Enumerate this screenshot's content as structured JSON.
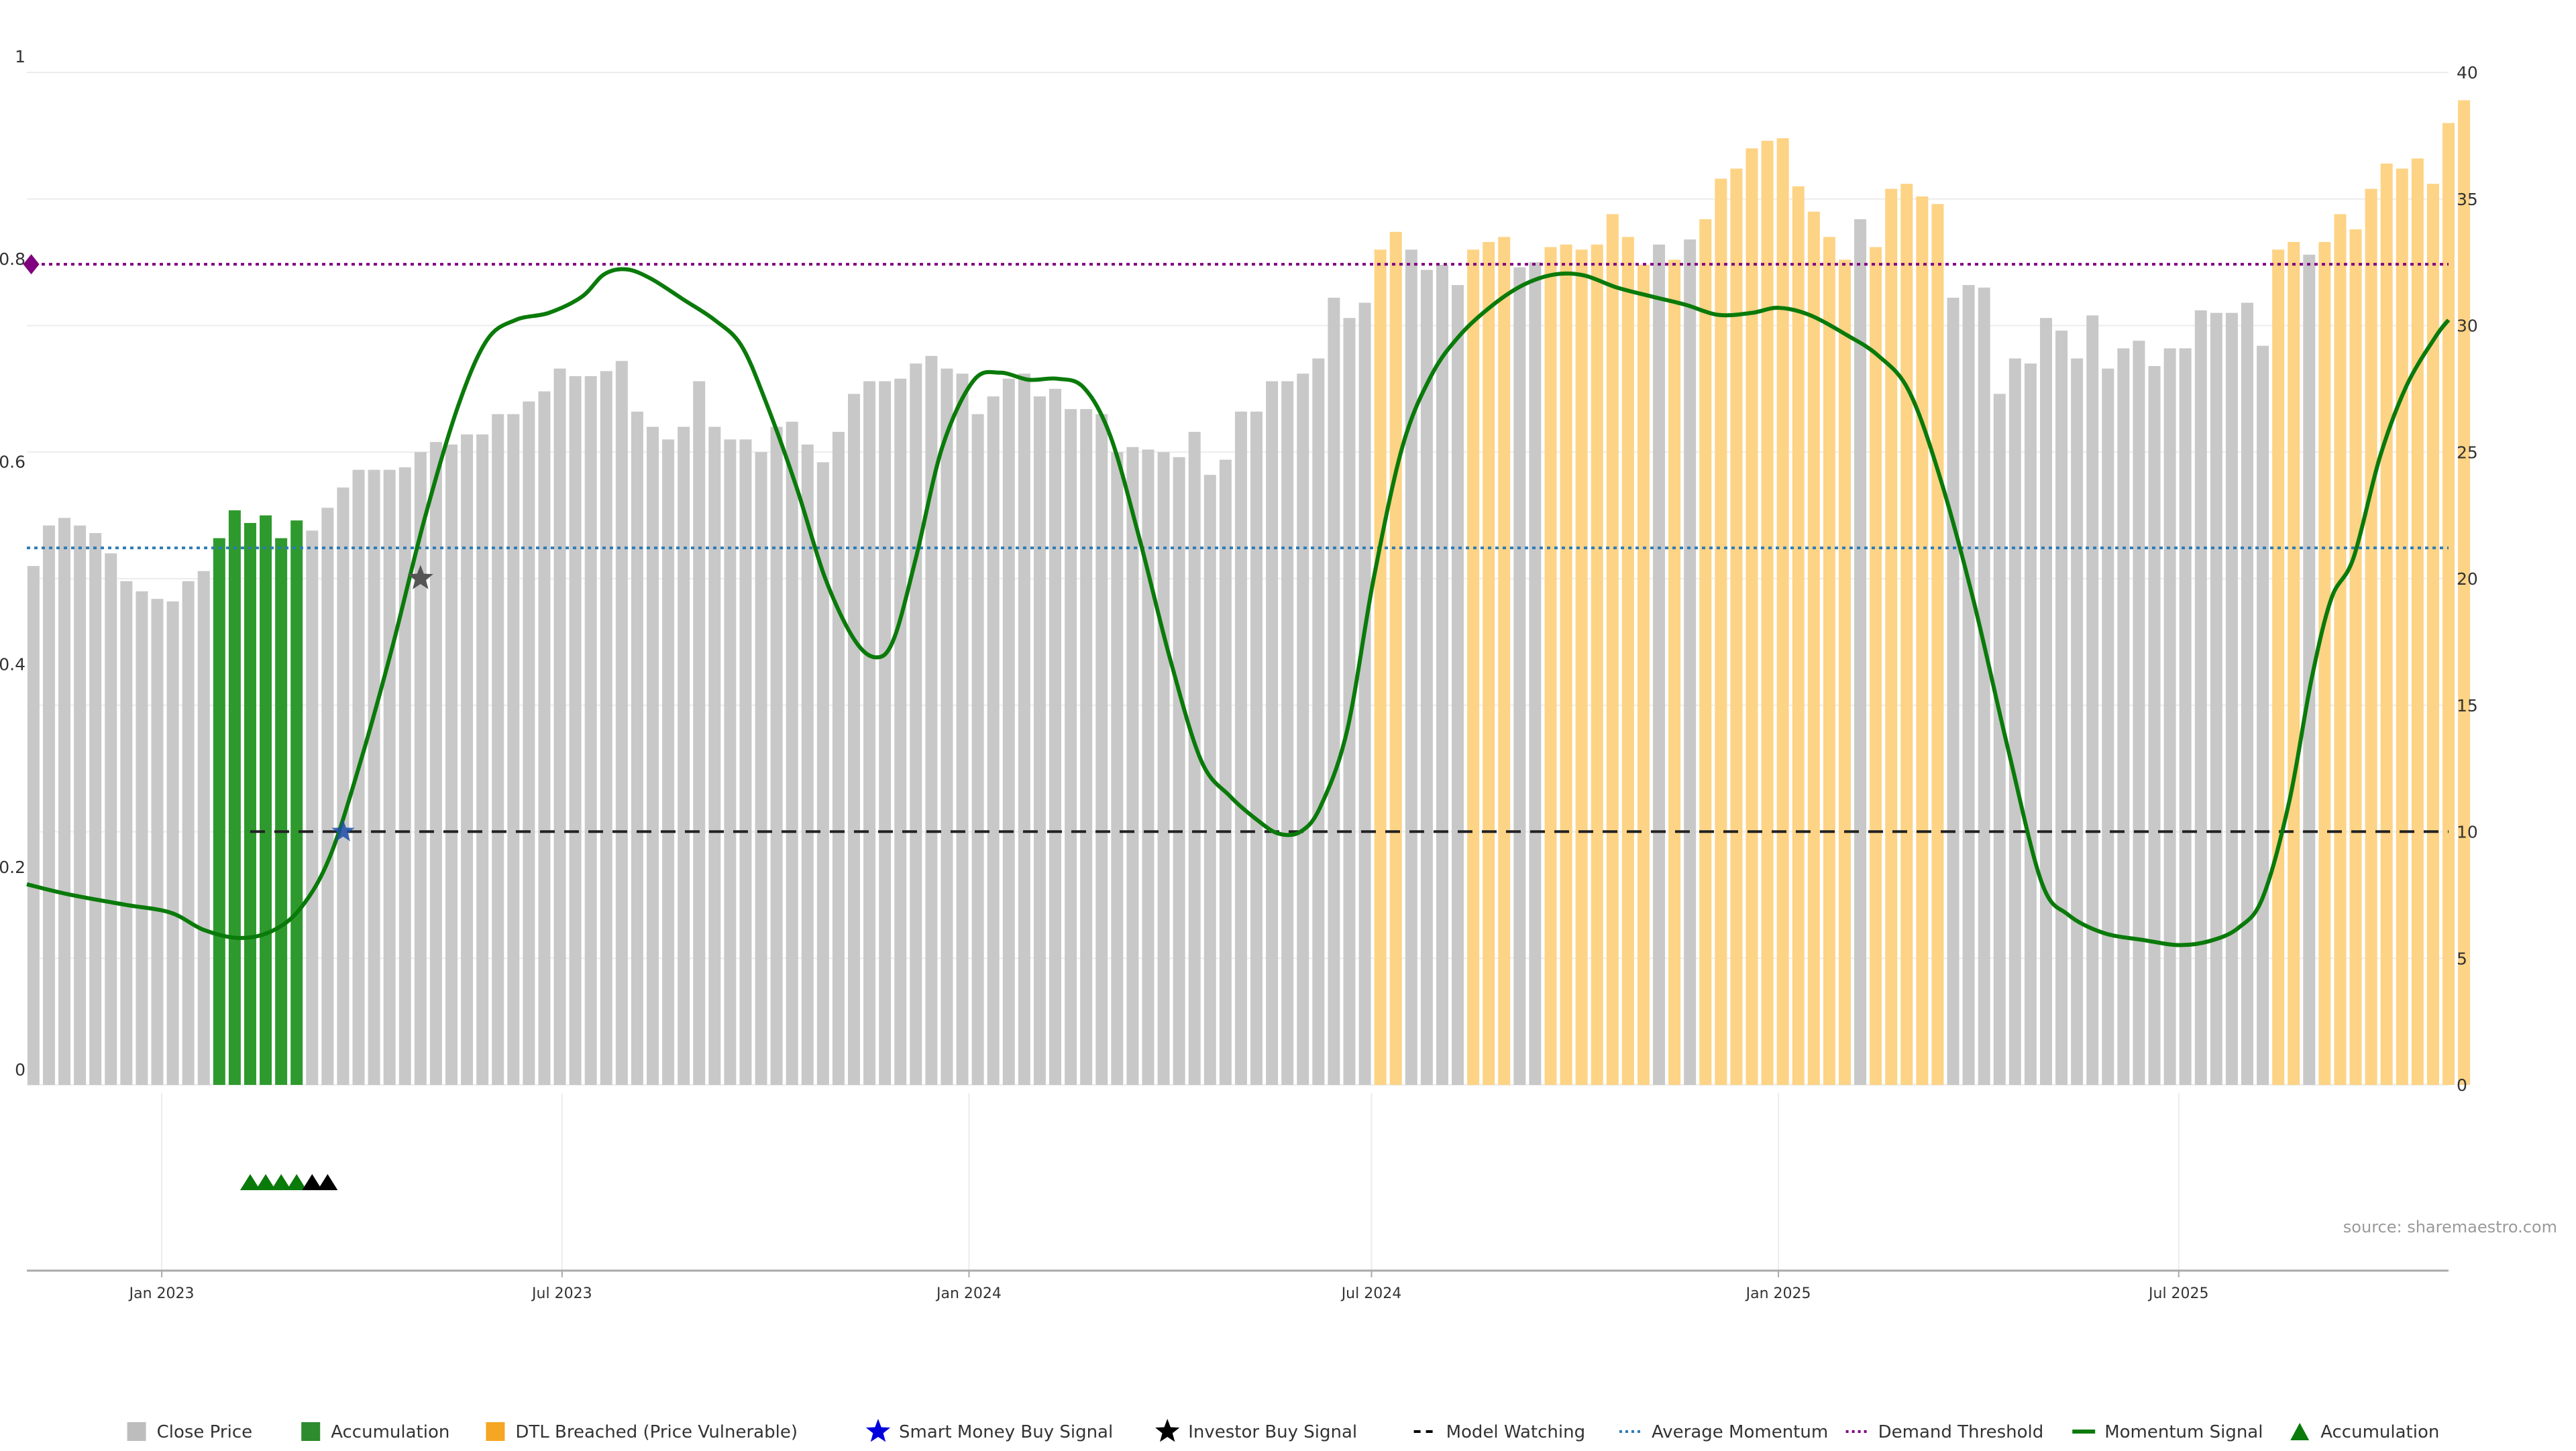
{
  "chart_data": {
    "type": "bar",
    "title": "",
    "source_label": "source: sharemaestro.com",
    "left_axis": {
      "range": [
        0,
        1
      ],
      "tick_values": [
        0,
        0.2,
        0.4,
        0.6,
        0.8,
        1
      ],
      "tick_labels": [
        "0",
        "0.2",
        "0.4",
        "0.6",
        "0.8",
        "1"
      ]
    },
    "right_axis": {
      "range": [
        0,
        40
      ],
      "tick_values": [
        0,
        5,
        10,
        15,
        20,
        25,
        30,
        35,
        40
      ],
      "tick_labels": [
        "0",
        "5",
        "10",
        "15",
        "20",
        "25",
        "30",
        "35",
        "40"
      ]
    },
    "x_axis": {
      "start": "2022-11-01",
      "end": "2025-10-31",
      "ticks": [
        {
          "date": "2023-01-01",
          "label": "Jan 2023"
        },
        {
          "date": "2023-07-01",
          "label": "Jul 2023"
        },
        {
          "date": "2024-01-01",
          "label": "Jan 2024"
        },
        {
          "date": "2024-07-01",
          "label": "Jul 2024"
        },
        {
          "date": "2025-01-01",
          "label": "Jan 2025"
        },
        {
          "date": "2025-07-01",
          "label": "Jul 2025"
        }
      ]
    },
    "bar_series": {
      "start_week": "2022-11-04",
      "interval_days": 7,
      "values": [
        20.5,
        22.1,
        22.4,
        22.1,
        21.8,
        21.0,
        19.9,
        19.5,
        19.2,
        19.1,
        19.9,
        20.3,
        21.6,
        22.7,
        22.2,
        22.5,
        21.6,
        22.3,
        21.9,
        22.8,
        23.6,
        24.3,
        24.3,
        24.3,
        24.4,
        25.0,
        25.4,
        25.3,
        25.7,
        25.7,
        26.5,
        26.5,
        27.0,
        27.4,
        28.3,
        28.0,
        28.0,
        28.2,
        28.6,
        26.6,
        26.0,
        25.5,
        26.0,
        27.8,
        26.0,
        25.5,
        25.5,
        25.0,
        26.0,
        26.2,
        25.3,
        24.6,
        25.8,
        27.3,
        27.8,
        27.8,
        27.9,
        28.5,
        28.8,
        28.3,
        28.1,
        26.5,
        27.2,
        27.9,
        28.1,
        27.2,
        27.5,
        26.7,
        26.7,
        26.5,
        25.0,
        25.2,
        25.1,
        25.0,
        24.8,
        25.8,
        24.1,
        24.7,
        26.6,
        26.6,
        27.8,
        27.8,
        28.1,
        28.7,
        31.1,
        30.3,
        30.9,
        33.0,
        33.7,
        33.0,
        32.2,
        32.4,
        31.6,
        33.0,
        33.3,
        33.5,
        32.3,
        32.5,
        33.1,
        33.2,
        33.0,
        33.2,
        34.4,
        33.5,
        32.4,
        33.2,
        32.6,
        33.4,
        34.2,
        35.8,
        36.2,
        37.0,
        37.3,
        37.4,
        35.5,
        34.5,
        33.5,
        32.6,
        34.2,
        33.1,
        35.4,
        35.6,
        35.1,
        34.8,
        31.1,
        31.6,
        31.5,
        27.3,
        28.7,
        28.5,
        30.3,
        29.8,
        28.7,
        30.4,
        28.3,
        29.1,
        29.4,
        28.4,
        29.1,
        29.1,
        30.6,
        30.5,
        30.5,
        30.9,
        29.2,
        33.0,
        33.3,
        32.8,
        33.3,
        34.4,
        33.8,
        35.4,
        36.4,
        36.2,
        36.6,
        35.6,
        38.0,
        38.9
      ],
      "colors": [
        "grey",
        "grey",
        "grey",
        "grey",
        "grey",
        "grey",
        "grey",
        "grey",
        "grey",
        "grey",
        "grey",
        "grey",
        "green",
        "green",
        "green",
        "green",
        "green",
        "green",
        "grey",
        "grey",
        "grey",
        "grey",
        "grey",
        "grey",
        "grey",
        "grey",
        "grey",
        "grey",
        "grey",
        "grey",
        "grey",
        "grey",
        "grey",
        "grey",
        "grey",
        "grey",
        "grey",
        "grey",
        "grey",
        "grey",
        "grey",
        "grey",
        "grey",
        "grey",
        "grey",
        "grey",
        "grey",
        "grey",
        "grey",
        "grey",
        "grey",
        "grey",
        "grey",
        "grey",
        "grey",
        "grey",
        "grey",
        "grey",
        "grey",
        "grey",
        "grey",
        "grey",
        "grey",
        "grey",
        "grey",
        "grey",
        "grey",
        "grey",
        "grey",
        "grey",
        "grey",
        "grey",
        "grey",
        "grey",
        "grey",
        "grey",
        "grey",
        "grey",
        "grey",
        "grey",
        "grey",
        "grey",
        "grey",
        "grey",
        "grey",
        "grey",
        "grey",
        "orange",
        "orange",
        "grey",
        "grey",
        "grey",
        "grey",
        "orange",
        "orange",
        "orange",
        "grey",
        "grey",
        "orange",
        "orange",
        "orange",
        "orange",
        "orange",
        "orange",
        "orange",
        "grey",
        "orange",
        "grey",
        "orange",
        "orange",
        "orange",
        "orange",
        "orange",
        "orange",
        "orange",
        "orange",
        "orange",
        "orange",
        "grey",
        "orange",
        "orange",
        "orange",
        "orange",
        "orange",
        "grey",
        "grey",
        "grey",
        "grey",
        "grey",
        "grey",
        "grey",
        "grey",
        "grey",
        "grey",
        "grey",
        "grey",
        "grey",
        "grey",
        "grey",
        "grey",
        "grey",
        "grey",
        "grey",
        "grey",
        "grey",
        "orange",
        "orange",
        "grey",
        "orange",
        "orange",
        "orange",
        "orange",
        "orange",
        "orange",
        "orange",
        "orange",
        "orange",
        "orange"
      ]
    },
    "momentum_series": {
      "name": "Momentum Signal",
      "axis": "left",
      "points": [
        [
          "2022-11-01",
          0.198
        ],
        [
          "2022-11-20",
          0.188
        ],
        [
          "2022-12-15",
          0.178
        ],
        [
          "2023-01-05",
          0.17
        ],
        [
          "2023-01-20",
          0.153
        ],
        [
          "2023-02-05",
          0.145
        ],
        [
          "2023-02-20",
          0.152
        ],
        [
          "2023-03-05",
          0.175
        ],
        [
          "2023-03-18",
          0.225
        ],
        [
          "2023-04-01",
          0.32
        ],
        [
          "2023-04-15",
          0.43
        ],
        [
          "2023-04-30",
          0.56
        ],
        [
          "2023-05-15",
          0.67
        ],
        [
          "2023-05-28",
          0.735
        ],
        [
          "2023-06-10",
          0.755
        ],
        [
          "2023-06-25",
          0.762
        ],
        [
          "2023-07-10",
          0.778
        ],
        [
          "2023-07-20",
          0.8
        ],
        [
          "2023-07-30",
          0.805
        ],
        [
          "2023-08-10",
          0.796
        ],
        [
          "2023-08-25",
          0.775
        ],
        [
          "2023-09-08",
          0.755
        ],
        [
          "2023-09-20",
          0.73
        ],
        [
          "2023-10-01",
          0.675
        ],
        [
          "2023-10-15",
          0.59
        ],
        [
          "2023-10-28",
          0.5
        ],
        [
          "2023-11-10",
          0.44
        ],
        [
          "2023-11-20",
          0.422
        ],
        [
          "2023-11-28",
          0.44
        ],
        [
          "2023-12-08",
          0.52
        ],
        [
          "2023-12-20",
          0.63
        ],
        [
          "2024-01-03",
          0.695
        ],
        [
          "2024-01-15",
          0.703
        ],
        [
          "2024-01-28",
          0.696
        ],
        [
          "2024-02-10",
          0.697
        ],
        [
          "2024-02-22",
          0.688
        ],
        [
          "2024-03-05",
          0.64
        ],
        [
          "2024-03-18",
          0.54
        ],
        [
          "2024-04-01",
          0.42
        ],
        [
          "2024-04-15",
          0.32
        ],
        [
          "2024-04-28",
          0.285
        ],
        [
          "2024-05-10",
          0.262
        ],
        [
          "2024-05-20",
          0.248
        ],
        [
          "2024-05-30",
          0.25
        ],
        [
          "2024-06-08",
          0.275
        ],
        [
          "2024-06-20",
          0.35
        ],
        [
          "2024-07-02",
          0.5
        ],
        [
          "2024-07-15",
          0.63
        ],
        [
          "2024-07-28",
          0.7
        ],
        [
          "2024-08-10",
          0.74
        ],
        [
          "2024-08-25",
          0.77
        ],
        [
          "2024-09-08",
          0.79
        ],
        [
          "2024-09-22",
          0.8
        ],
        [
          "2024-10-05",
          0.799
        ],
        [
          "2024-10-20",
          0.787
        ],
        [
          "2024-11-05",
          0.778
        ],
        [
          "2024-11-20",
          0.77
        ],
        [
          "2024-12-05",
          0.76
        ],
        [
          "2024-12-20",
          0.762
        ],
        [
          "2025-01-01",
          0.767
        ],
        [
          "2025-01-15",
          0.76
        ],
        [
          "2025-02-01",
          0.74
        ],
        [
          "2025-02-15",
          0.72
        ],
        [
          "2025-03-01",
          0.685
        ],
        [
          "2025-03-15",
          0.6
        ],
        [
          "2025-03-30",
          0.48
        ],
        [
          "2025-04-15",
          0.33
        ],
        [
          "2025-04-30",
          0.2
        ],
        [
          "2025-05-12",
          0.168
        ],
        [
          "2025-05-28",
          0.15
        ],
        [
          "2025-06-15",
          0.143
        ],
        [
          "2025-07-01",
          0.138
        ],
        [
          "2025-07-15",
          0.142
        ],
        [
          "2025-07-28",
          0.155
        ],
        [
          "2025-08-08",
          0.185
        ],
        [
          "2025-08-20",
          0.28
        ],
        [
          "2025-08-30",
          0.4
        ],
        [
          "2025-09-08",
          0.48
        ],
        [
          "2025-09-18",
          0.52
        ],
        [
          "2025-09-30",
          0.62
        ],
        [
          "2025-10-12",
          0.69
        ],
        [
          "2025-10-25",
          0.738
        ],
        [
          "2025-10-31",
          0.755
        ]
      ]
    },
    "reference_lines": {
      "model_watching": {
        "value": 0.25,
        "start": "2023-02-10",
        "end": "2025-10-31",
        "axis": "left"
      },
      "average_momentum": {
        "value": 0.53,
        "axis": "left"
      },
      "demand_threshold": {
        "value": 0.81,
        "axis": "left"
      }
    },
    "markers": [
      {
        "type": "smart-money-buy",
        "date": "2023-03-24",
        "value": 0.25,
        "axis": "left"
      },
      {
        "type": "investor-buy",
        "date": "2023-04-28",
        "value": 0.5,
        "axis": "left"
      },
      {
        "type": "demand-diamond",
        "date": "2022-11-03",
        "value": 0.81,
        "axis": "left"
      }
    ],
    "lower_panel_triangles": [
      {
        "date": "2023-02-10",
        "color": "green"
      },
      {
        "date": "2023-02-17",
        "color": "green"
      },
      {
        "date": "2023-02-24",
        "color": "green"
      },
      {
        "date": "2023-03-03",
        "color": "green"
      },
      {
        "date": "2023-03-10",
        "color": "black"
      },
      {
        "date": "2023-03-17",
        "color": "black"
      }
    ],
    "legend": {
      "placement": "bottom",
      "items": [
        {
          "key": "close-price",
          "label": "Close Price",
          "color": "#bdbdbd"
        },
        {
          "key": "accumulation-bar",
          "label": "Accumulation",
          "color": "#2e8b2e"
        },
        {
          "key": "dtl-breached",
          "label": "DTL Breached (Price Vulnerable)",
          "color": "#f5a623"
        },
        {
          "key": "smart-money-buy",
          "label": "Smart Money Buy Signal",
          "color": "#0000dd"
        },
        {
          "key": "investor-buy",
          "label": "Investor Buy Signal",
          "color": "#000000"
        },
        {
          "key": "model-watching",
          "label": "Model Watching",
          "color": "#000000"
        },
        {
          "key": "average-momentum",
          "label": "Average Momentum",
          "color": "#2c7bb6"
        },
        {
          "key": "demand-threshold",
          "label": "Demand Threshold",
          "color": "#800080"
        },
        {
          "key": "momentum-signal",
          "label": "Momentum Signal",
          "color": "#0a7a0a"
        },
        {
          "key": "accumulation-triangle",
          "label": "Accumulation",
          "color": "#0a7a0a"
        }
      ]
    },
    "colors": {
      "grey_bar": "#c8c8c8",
      "green_bar": "#2e9a2e",
      "orange_bar": "#fdd385",
      "momentum": "#0a7a0a",
      "grid": "#ececec"
    },
    "grid": true
  }
}
